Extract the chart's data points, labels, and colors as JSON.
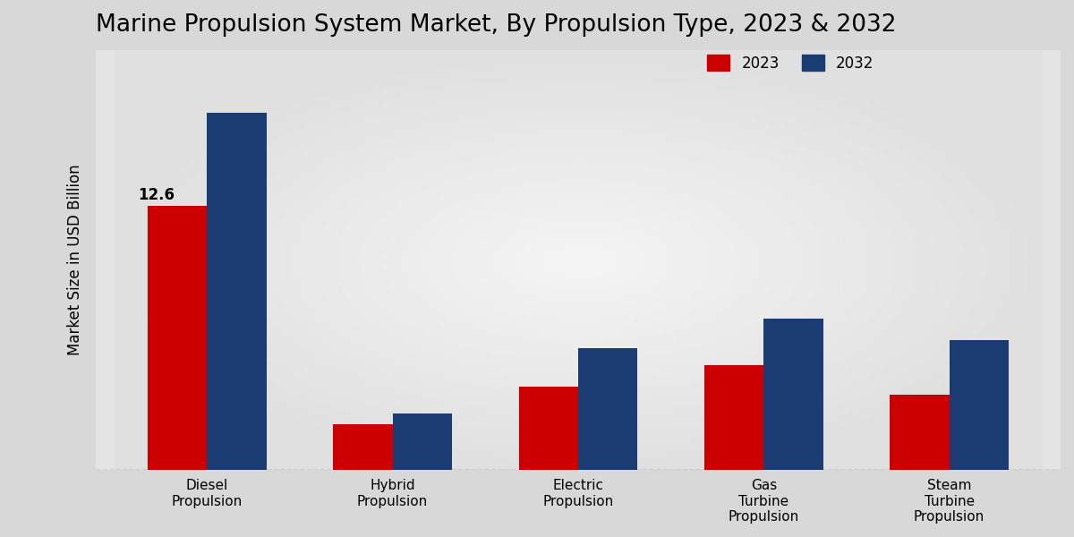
{
  "title": "Marine Propulsion System Market, By Propulsion Type, 2023 & 2032",
  "ylabel": "Market Size in USD Billion",
  "categories": [
    "Diesel\nPropulsion",
    "Hybrid\nPropulsion",
    "Electric\nPropulsion",
    "Gas\nTurbine\nPropulsion",
    "Steam\nTurbine\nPropulsion"
  ],
  "values_2023": [
    12.6,
    2.2,
    4.0,
    5.0,
    3.6
  ],
  "values_2032": [
    17.0,
    2.7,
    5.8,
    7.2,
    6.2
  ],
  "color_2023": "#CC0000",
  "color_2032": "#1A3C72",
  "annotation_value": "12.6",
  "annotation_bar_index": 0,
  "bar_width": 0.32,
  "ylim": [
    0,
    20
  ],
  "legend_labels": [
    "2023",
    "2032"
  ],
  "bg_light": "#F0F0F0",
  "bg_dark": "#C8C8C8",
  "title_fontsize": 19,
  "ylabel_fontsize": 12,
  "tick_fontsize": 11,
  "legend_fontsize": 12
}
